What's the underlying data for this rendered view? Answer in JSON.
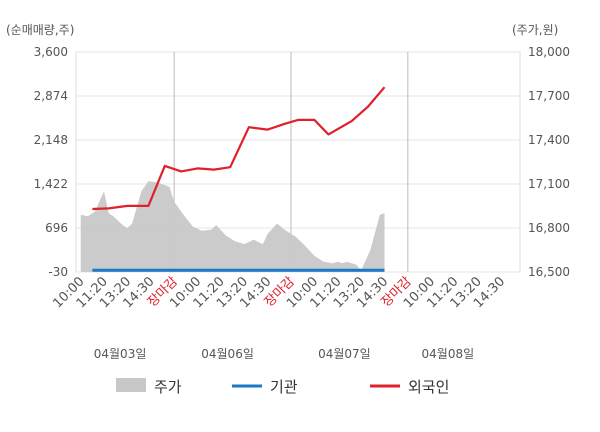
{
  "chart_data": {
    "type": "line",
    "left_axis": {
      "unit_label": "(순매매량,주)",
      "ticks": [
        "3,600",
        "2,874",
        "2,148",
        "1,422",
        "696",
        "-30"
      ],
      "range": [
        -30,
        3600
      ]
    },
    "right_axis": {
      "unit_label": "(주가,원)",
      "ticks": [
        "18,000",
        "17,700",
        "17,400",
        "17,100",
        "16,800",
        "16,500"
      ],
      "range": [
        16500,
        18000
      ]
    },
    "x_ticks": [
      {
        "label": "10:00",
        "red": false
      },
      {
        "label": "11:20",
        "red": false
      },
      {
        "label": "13:20",
        "red": false
      },
      {
        "label": "14:30",
        "red": false
      },
      {
        "label": "장마감",
        "red": true
      },
      {
        "label": "10:00",
        "red": false
      },
      {
        "label": "11:20",
        "red": false
      },
      {
        "label": "13:20",
        "red": false
      },
      {
        "label": "14:30",
        "red": false
      },
      {
        "label": "장마감",
        "red": true
      },
      {
        "label": "10:00",
        "red": false
      },
      {
        "label": "11:20",
        "red": false
      },
      {
        "label": "13:20",
        "red": false
      },
      {
        "label": "14:30",
        "red": false
      },
      {
        "label": "장마감",
        "red": true
      },
      {
        "label": "10:00",
        "red": false
      },
      {
        "label": "11:20",
        "red": false
      },
      {
        "label": "13:20",
        "red": false
      },
      {
        "label": "14:30",
        "red": false
      }
    ],
    "date_labels": [
      "04월03일",
      "04월06일",
      "04월07일",
      "04월08일"
    ],
    "series": [
      {
        "name": "외국인",
        "axis": "left",
        "color": "#e0202a",
        "x": [
          0.5,
          1.2,
          2.0,
          2.9,
          3.6,
          4.3,
          5.0,
          5.7,
          6.4,
          7.2,
          8.0,
          8.7,
          9.3,
          10.0,
          10.6,
          11.6,
          12.3,
          13.0
        ],
        "y": [
          1010,
          1020,
          1060,
          1060,
          1720,
          1630,
          1680,
          1660,
          1700,
          2360,
          2320,
          2410,
          2480,
          2480,
          2240,
          2460,
          2700,
          3020
        ]
      },
      {
        "name": "기관",
        "axis": "left",
        "color": "#1a78c8",
        "x": [
          0.5,
          13.0
        ],
        "y": [
          0,
          0
        ]
      },
      {
        "name": "주가",
        "axis": "right",
        "color": "#c8c8c8",
        "x": [
          0.0,
          0.3,
          0.6,
          1.0,
          1.2,
          1.4,
          1.8,
          2.0,
          2.2,
          2.6,
          2.9,
          3.3,
          3.8,
          4.0,
          4.4,
          4.8,
          5.2,
          5.6,
          5.8,
          6.2,
          6.6,
          7.0,
          7.4,
          7.8,
          8.0,
          8.4,
          8.8,
          9.2,
          9.6,
          10.0,
          10.4,
          10.8,
          11.0,
          11.2,
          11.4,
          11.6,
          11.8,
          12.0,
          12.4,
          12.8,
          13.0
        ],
        "y": [
          16890,
          16880,
          16910,
          17050,
          16900,
          16880,
          16820,
          16800,
          16830,
          17050,
          17120,
          17110,
          17080,
          16980,
          16890,
          16810,
          16780,
          16790,
          16820,
          16750,
          16710,
          16690,
          16720,
          16690,
          16760,
          16830,
          16780,
          16740,
          16680,
          16610,
          16570,
          16560,
          16570,
          16560,
          16570,
          16560,
          16550,
          16510,
          16650,
          16890,
          16900
        ]
      }
    ],
    "legend": {
      "placement": "bottom",
      "items": [
        {
          "label": "주가",
          "color": "#c8c8c8",
          "shape": "area"
        },
        {
          "label": "기관",
          "color": "#1a78c8",
          "shape": "line"
        },
        {
          "label": "외국인",
          "color": "#e0202a",
          "shape": "line"
        }
      ]
    },
    "grid": true
  }
}
